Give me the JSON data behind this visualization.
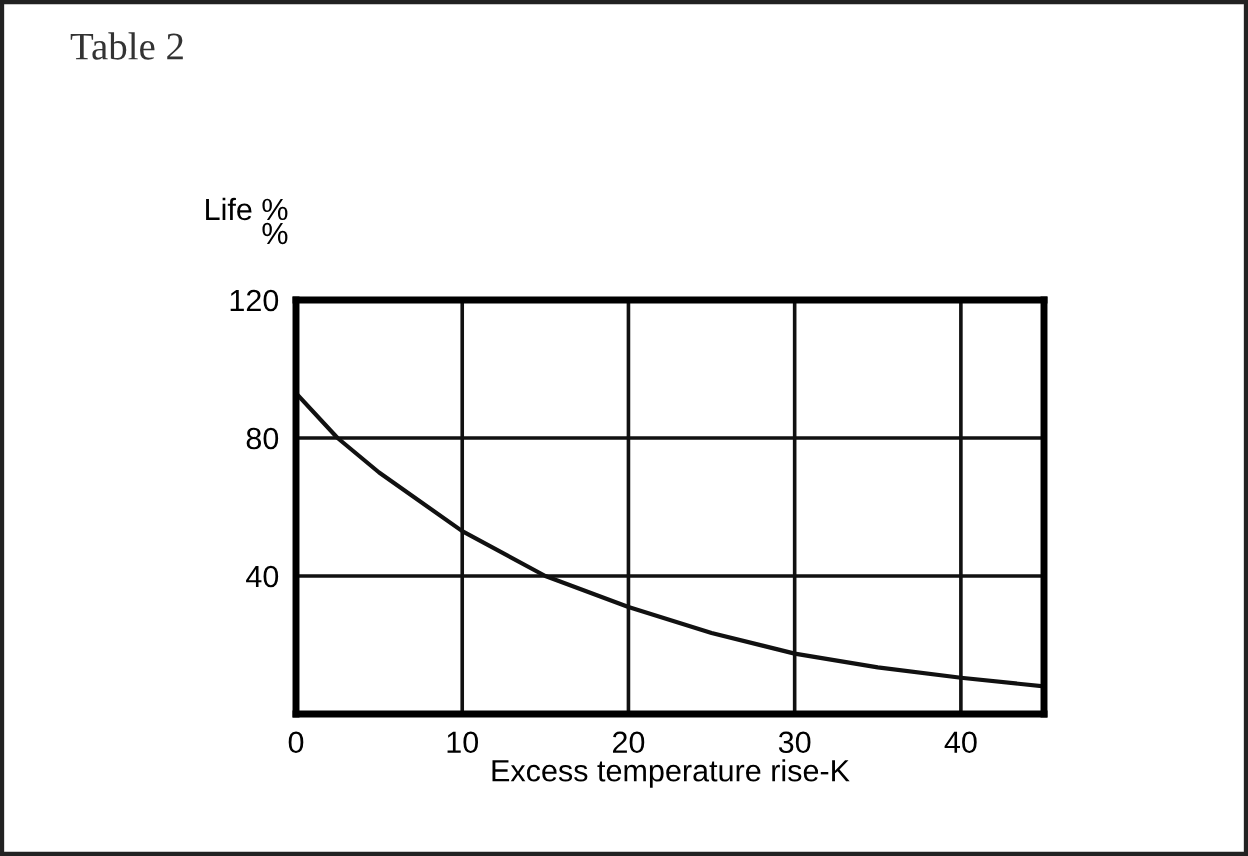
{
  "chart_data": {
    "type": "line",
    "title": "Table 2",
    "ylabel": "Life %\n%",
    "xlabel": "Excess temperature rise-K",
    "x": [
      0,
      2.5,
      5,
      10,
      15,
      20,
      25,
      30,
      35,
      40,
      45
    ],
    "series": [
      {
        "color": "#111111",
        "values": [
          93,
          80,
          70,
          53,
          40,
          31,
          23.5,
          17.5,
          13.5,
          10.5,
          8
        ]
      }
    ],
    "xlim": [
      0,
      45
    ],
    "ylim": [
      0,
      120
    ],
    "xticks": [
      0,
      10,
      20,
      30,
      40
    ],
    "yticks": [
      {
        "value": 0,
        "label": null
      },
      40,
      80,
      120
    ],
    "grid": true,
    "marker": "none",
    "line_style": "solid",
    "legend": false
  }
}
